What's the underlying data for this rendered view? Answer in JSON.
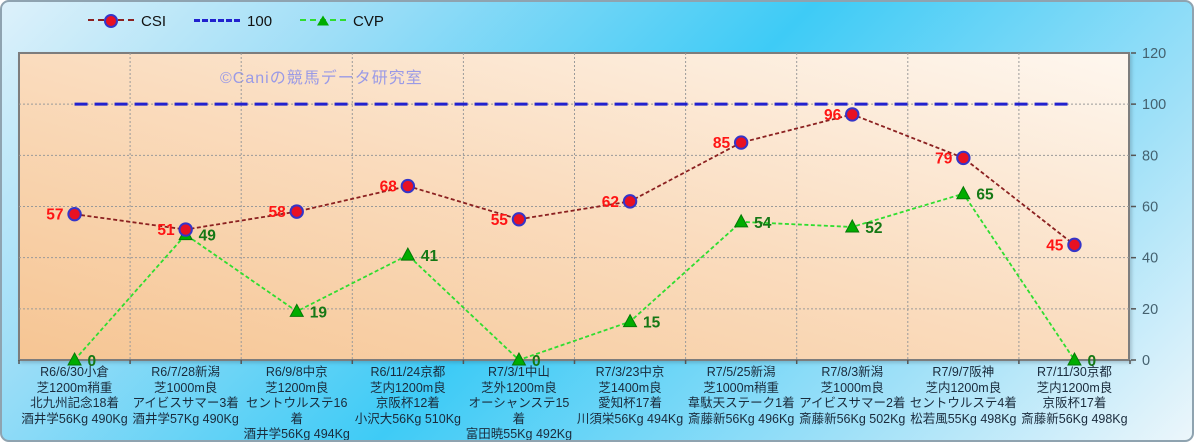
{
  "watermark": "©Caniの競馬データ研究室",
  "chart_data": {
    "type": "line",
    "title": "",
    "xlabel": "",
    "ylabel": "",
    "ylim": [
      0,
      120
    ],
    "yticks": [
      0,
      20,
      40,
      60,
      80,
      100,
      120
    ],
    "grid": true,
    "legend_position": "top",
    "categories": [
      [
        "R6/6/30小倉",
        "芝1200m稍重",
        "北九州記念18着",
        "酒井学56Kg 490Kg"
      ],
      [
        "R6/7/28新潟",
        "芝1000m良",
        "アイビスサマー3着",
        "酒井学57Kg 490Kg"
      ],
      [
        "R6/9/8中京",
        "芝1200m良",
        "セントウルステ16着",
        "酒井学56Kg 494Kg"
      ],
      [
        "R6/11/24京都",
        "芝内1200m良",
        "京阪杯12着",
        "小沢大56Kg 510Kg"
      ],
      [
        "R7/3/1中山",
        "芝外1200m良",
        "オーシャンステ15着",
        "富田暁55Kg 492Kg"
      ],
      [
        "R7/3/23中京",
        "芝1400m良",
        "愛知杯17着",
        "川須栄56Kg 494Kg"
      ],
      [
        "R7/5/25新潟",
        "芝1000m稍重",
        "韋駄天ステーク1着",
        "斎藤新56Kg 496Kg"
      ],
      [
        "R7/8/3新潟",
        "芝1000m良",
        "アイビスサマー2着",
        "斎藤新56Kg 502Kg"
      ],
      [
        "R7/9/7阪神",
        "芝内1200m良",
        "セントウルステ4着",
        "松若風55Kg 498Kg"
      ],
      [
        "R7/11/30京都",
        "芝内1200m良",
        "京阪杯17着",
        "斎藤新56Kg 498Kg"
      ]
    ],
    "series": [
      {
        "name": "CSI",
        "values": [
          57,
          51,
          58,
          68,
          55,
          62,
          85,
          96,
          79,
          45
        ],
        "line_color": "#8b2020",
        "marker": "circle",
        "marker_fill": "#e81123",
        "marker_stroke": "#3535c8",
        "label_color": "#ff1414"
      },
      {
        "name": "100",
        "style": "rule",
        "constant": 100,
        "values": [
          100,
          100,
          100,
          100,
          100,
          100,
          100,
          100,
          100,
          100
        ],
        "line_color": "#2121ce"
      },
      {
        "name": "CVP",
        "values": [
          0,
          49,
          19,
          41,
          0,
          15,
          54,
          52,
          65,
          0
        ],
        "line_color": "#2fdd2f",
        "marker": "triangle",
        "marker_fill": "#00ac00",
        "marker_stroke": "#067806",
        "label_color": "#157815"
      }
    ],
    "colors": {
      "grid": "#9a9a9a",
      "plot_border": "#7d7d7d",
      "y_tick_label": "#44616f",
      "x_tick_label": "#1a2b3c",
      "plot_bg_bottom": "#f6c593",
      "plot_bg_top": "#fef7ef",
      "outer_bg": "#3ecbf6",
      "watermark": "#9a9ae6"
    }
  }
}
